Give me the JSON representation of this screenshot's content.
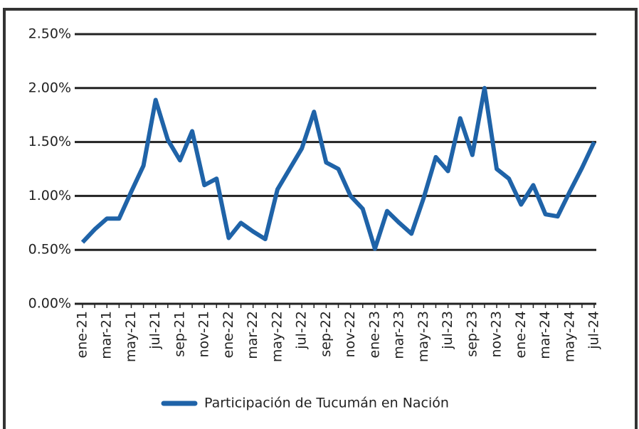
{
  "chart_data": {
    "type": "line",
    "categories": [
      "ene-21",
      null,
      "mar-21",
      null,
      "may-21",
      null,
      "jul-21",
      null,
      "sep-21",
      null,
      "nov-21",
      null,
      "ene-22",
      null,
      "mar-22",
      null,
      "may-22",
      null,
      "jul-22",
      null,
      "sep-22",
      null,
      "nov-22",
      null,
      "ene-23",
      null,
      "mar-23",
      null,
      "may-23",
      null,
      "jul-23",
      null,
      "sep-23",
      null,
      "nov-23",
      null,
      "ene-24",
      null,
      "mar-24",
      null,
      "may-24",
      null,
      "jul-24"
    ],
    "series": [
      {
        "name": "Participación de Tucumán en Nación",
        "color": "#1f63a8",
        "values": [
          0.57,
          0.69,
          0.79,
          0.79,
          1.04,
          1.28,
          1.89,
          1.52,
          1.33,
          1.6,
          1.1,
          1.16,
          0.61,
          0.75,
          0.67,
          0.6,
          1.06,
          1.25,
          1.44,
          1.78,
          1.31,
          1.25,
          1.0,
          0.88,
          0.51,
          0.86,
          0.75,
          0.65,
          0.98,
          1.36,
          1.23,
          1.72,
          1.38,
          2.0,
          1.25,
          1.16,
          0.92,
          1.1,
          0.83,
          0.81,
          1.04,
          1.26,
          1.5
        ]
      }
    ],
    "ylim": [
      0,
      2.5
    ],
    "yticks": [
      {
        "value": 0,
        "label": "0.00%"
      },
      {
        "value": 0.5,
        "label": "0.50%"
      },
      {
        "value": 1,
        "label": "1.00%"
      },
      {
        "value": 1.5,
        "label": "1.50%"
      },
      {
        "value": 2,
        "label": "2.00%"
      },
      {
        "value": 2.5,
        "label": "2.50%"
      }
    ],
    "grid": true,
    "legend": "bottom"
  }
}
